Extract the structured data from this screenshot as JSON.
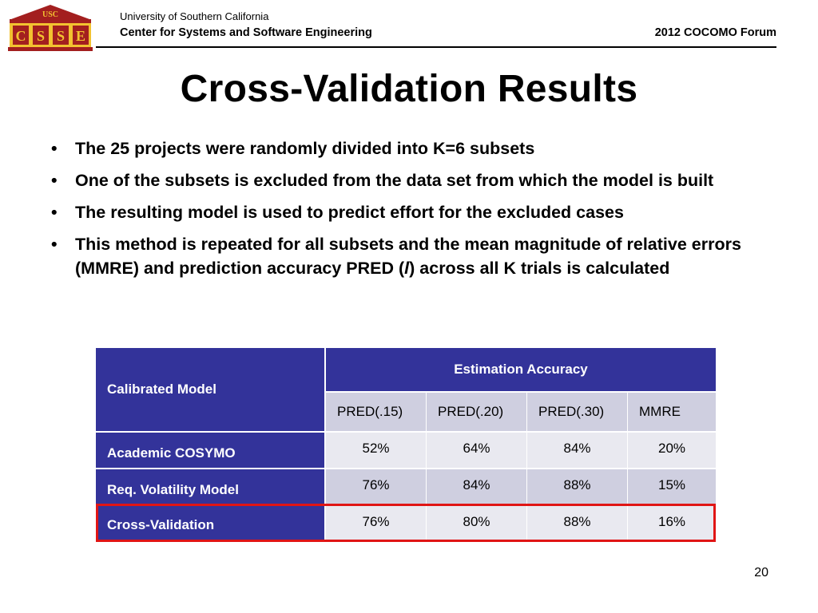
{
  "header": {
    "logo_text": "USC CSSE",
    "org_line1": "University of Southern California",
    "org_line2": "Center for Systems and Software Engineering",
    "forum": "2012 COCOMO Forum"
  },
  "title": "Cross-Validation Results",
  "bullets": [
    "The 25 projects were randomly divided into K=6 subsets",
    "One of the subsets is excluded from the data set from which the model is built",
    "The resulting model is used to predict effort for the excluded cases",
    "This method is repeated for all subsets and the mean magnitude of relative errors (MMRE) and prediction accuracy PRED ("
  ],
  "bullet4_italic": "l",
  "bullet4_tail": ") across all K trials is calculated",
  "table": {
    "corner": "Calibrated Model",
    "group_header": "Estimation Accuracy",
    "columns": [
      "PRED(.15)",
      "PRED(.20)",
      "PRED(.30)",
      "MMRE"
    ],
    "rows": [
      {
        "label": "Academic COSYMO",
        "values": [
          "52%",
          "64%",
          "84%",
          "20%"
        ]
      },
      {
        "label": "Req. Volatility Model",
        "values": [
          "76%",
          "84%",
          "88%",
          "15%"
        ]
      },
      {
        "label": "Cross-Validation",
        "values": [
          "76%",
          "80%",
          "88%",
          "16%"
        ]
      }
    ]
  },
  "page_number": "20",
  "colors": {
    "table_header": "#33339a",
    "highlight": "#e01515",
    "logo_red": "#a31f1f",
    "logo_gold": "#f2c230"
  }
}
